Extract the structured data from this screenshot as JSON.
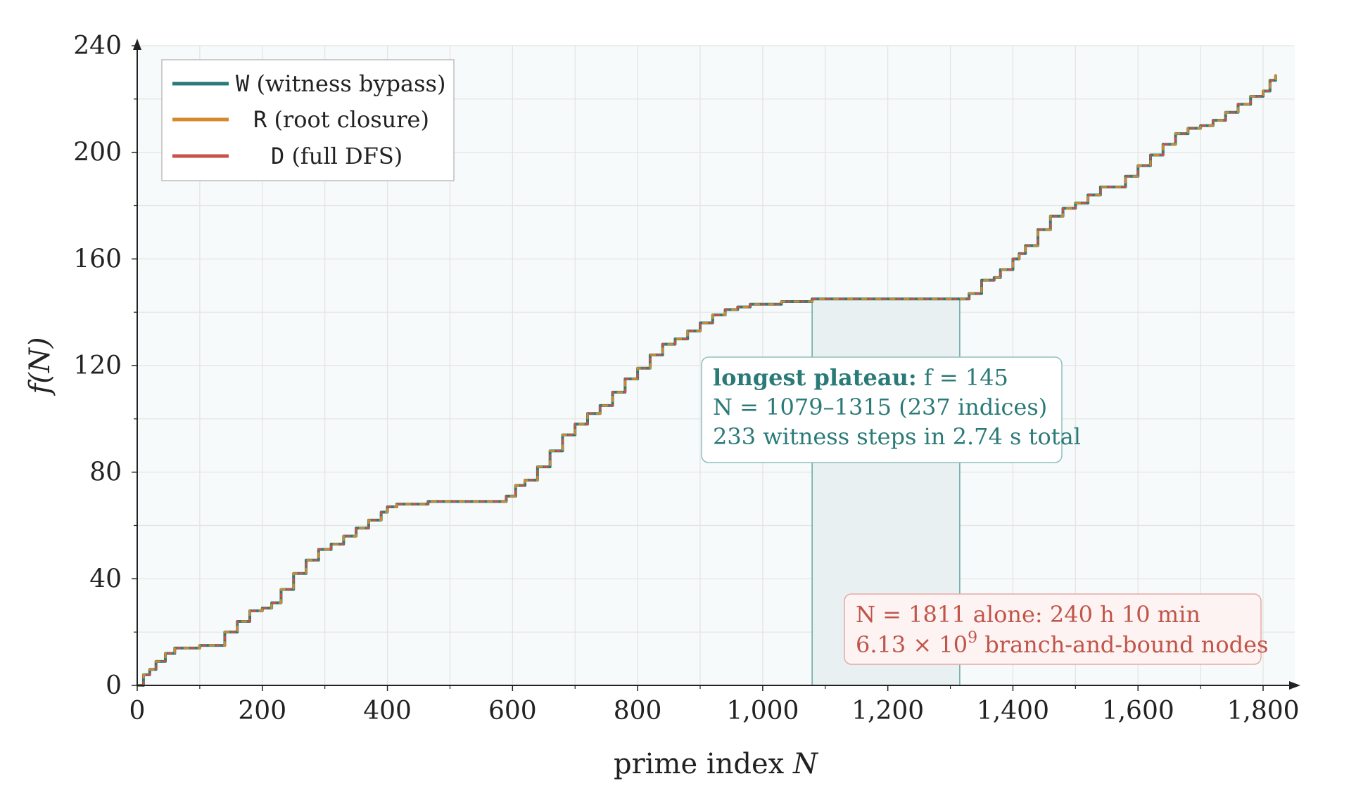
{
  "chart_data": {
    "type": "line",
    "xlabel_prefix": "prime index",
    "xlabel_var": "N",
    "ylabel": "f(N)",
    "xlim": [
      0,
      1860
    ],
    "ylim": [
      0,
      240
    ],
    "x_ticks": [
      0,
      200,
      400,
      600,
      800,
      1000,
      1200,
      1400,
      1600,
      1800
    ],
    "x_tick_labels": [
      "0",
      "200",
      "400",
      "600",
      "800",
      "1,000",
      "1,200",
      "1,400",
      "1,600",
      "1,800"
    ],
    "y_ticks": [
      0,
      40,
      80,
      120,
      160,
      200,
      240
    ],
    "y_tick_labels": [
      "0",
      "40",
      "80",
      "120",
      "160",
      "200",
      "240"
    ],
    "grid": true,
    "legend_position": "top-left",
    "legend": [
      {
        "code": "W",
        "label": "(witness bypass)",
        "color": "#2b7a78"
      },
      {
        "code": "R",
        "label": "(root closure)",
        "color": "#d4892c"
      },
      {
        "code": "D",
        "label": "(full DFS)",
        "color": "#c9514a"
      }
    ],
    "series": [
      {
        "name": "f(N)",
        "x": [
          0,
          10,
          20,
          30,
          45,
          60,
          100,
          130,
          140,
          160,
          180,
          200,
          215,
          230,
          250,
          270,
          290,
          310,
          330,
          350,
          370,
          390,
          400,
          415,
          465,
          575,
          590,
          605,
          620,
          640,
          660,
          680,
          700,
          720,
          740,
          760,
          780,
          800,
          820,
          840,
          860,
          880,
          900,
          920,
          940,
          960,
          980,
          1000,
          1030,
          1079,
          1315,
          1330,
          1350,
          1370,
          1380,
          1400,
          1410,
          1420,
          1440,
          1460,
          1480,
          1500,
          1520,
          1540,
          1560,
          1580,
          1600,
          1620,
          1640,
          1660,
          1680,
          1700,
          1720,
          1740,
          1760,
          1780,
          1800,
          1811,
          1820
        ],
        "y": [
          0,
          4,
          6,
          9,
          12,
          14,
          15,
          15,
          20,
          24,
          28,
          29,
          31,
          36,
          42,
          47,
          51,
          53,
          56,
          59,
          62,
          65,
          67,
          68,
          69,
          69,
          71,
          75,
          77,
          82,
          88,
          94,
          98,
          102,
          105,
          110,
          115,
          119,
          124,
          128,
          130,
          133,
          136,
          139,
          141,
          142,
          143,
          143,
          144,
          145,
          145,
          147,
          152,
          153,
          156,
          160,
          162,
          165,
          171,
          176,
          179,
          181,
          184,
          187,
          187,
          191,
          195,
          199,
          203,
          207,
          209,
          210,
          212,
          215,
          218,
          221,
          223,
          227,
          229
        ]
      }
    ],
    "plateau": {
      "x_start": 1079,
      "x_end": 1315,
      "y": 145
    }
  },
  "annotations": {
    "plateau_box": {
      "line1_bold": "longest plateau:",
      "line1_rest": "f = 145",
      "line2": "N = 1079–1315 (237 indices)",
      "line3": "233 witness steps in 2.74 s total"
    },
    "dfs_box": {
      "line1": "N = 1811 alone: 240 h 10 min",
      "line2_base": "6.13 × 10",
      "line2_exp": "9",
      "line2_rest": " branch-and-bound nodes"
    }
  },
  "colors": {
    "witness": "#2b7a78",
    "root": "#d4892c",
    "dfs": "#c9514a",
    "plateau_fill": "#e8f0f1",
    "plot_bg": "#f7fafa"
  }
}
